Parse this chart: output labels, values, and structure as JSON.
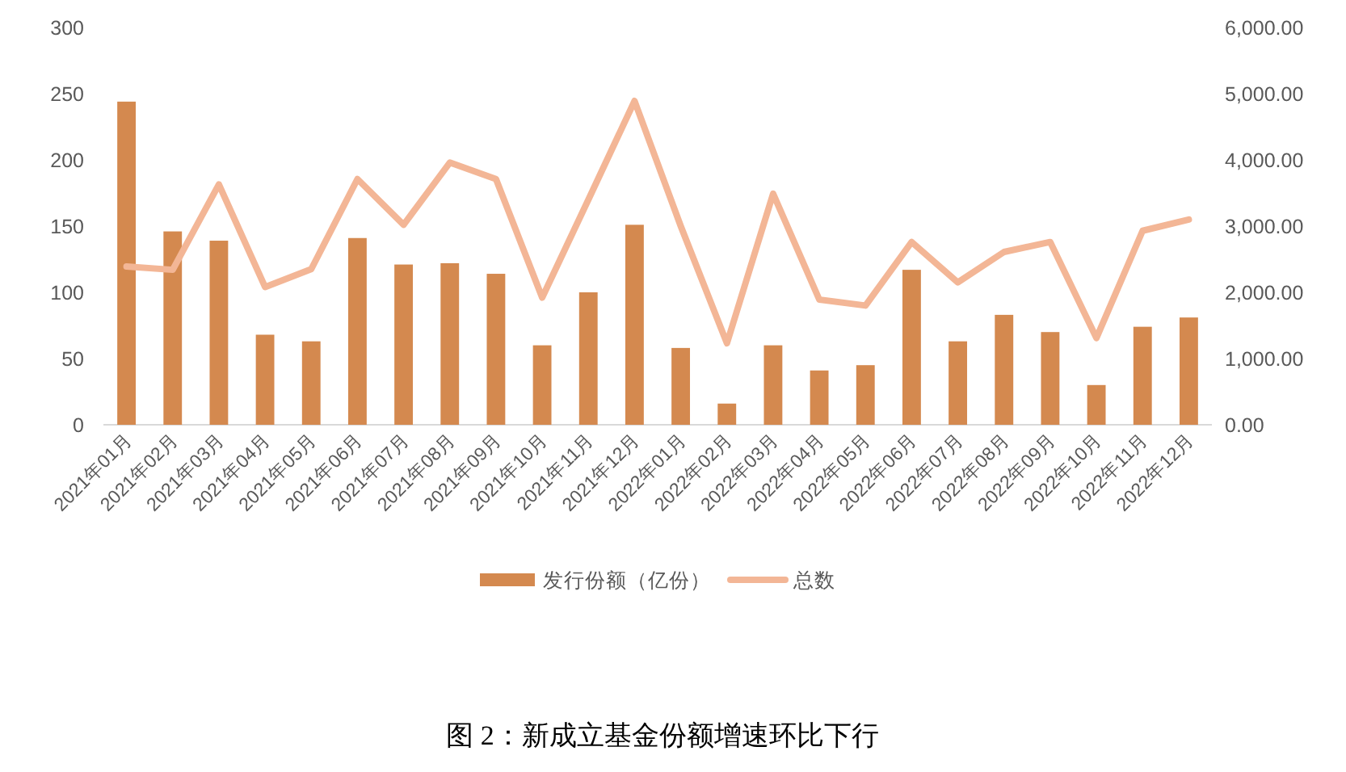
{
  "chart_data": {
    "type": "bar",
    "title": "图 2：新成立基金份额增速环比下行",
    "categories": [
      "2021年01月",
      "2021年02月",
      "2021年03月",
      "2021年04月",
      "2021年05月",
      "2021年06月",
      "2021年07月",
      "2021年08月",
      "2021年09月",
      "2021年10月",
      "2021年11月",
      "2021年12月",
      "2022年01月",
      "2022年02月",
      "2022年03月",
      "2022年04月",
      "2022年05月",
      "2022年06月",
      "2022年07月",
      "2022年08月",
      "2022年09月",
      "2022年10月",
      "2022年11月",
      "2022年12月"
    ],
    "series": [
      {
        "name": "发行份额（亿份）",
        "color": "#d4894f",
        "values": [
          244,
          146,
          139,
          68,
          63,
          141,
          121,
          122,
          114,
          60,
          100,
          151,
          58,
          16,
          60,
          41,
          45,
          117,
          63,
          83,
          70,
          30,
          74,
          81
        ]
      },
      {
        "name": "总数",
        "type": "line",
        "axis": "y2",
        "color": "#f3b696",
        "values": [
          2390,
          2340,
          3630,
          2080,
          2350,
          3710,
          3020,
          3960,
          3710,
          1920,
          3400,
          4890,
          3000,
          1230,
          3490,
          1890,
          1800,
          2760,
          2150,
          2610,
          2760,
          1310,
          2930,
          3100
        ]
      }
    ],
    "ylim": [
      0,
      300
    ],
    "yticks": [
      0,
      50,
      100,
      150,
      200,
      250,
      300
    ],
    "y2lim": [
      0,
      6000
    ],
    "y2ticks": [
      {
        "value": 0,
        "label": "0.00"
      },
      {
        "value": 1000,
        "label": "1,000.00"
      },
      {
        "value": 2000,
        "label": "2,000.00"
      },
      {
        "value": 3000,
        "label": "3,000.00"
      },
      {
        "value": 4000,
        "label": "4,000.00"
      },
      {
        "value": 5000,
        "label": "5,000.00"
      },
      {
        "value": 6000,
        "label": "6,000.00"
      }
    ],
    "legend": "bottom"
  }
}
